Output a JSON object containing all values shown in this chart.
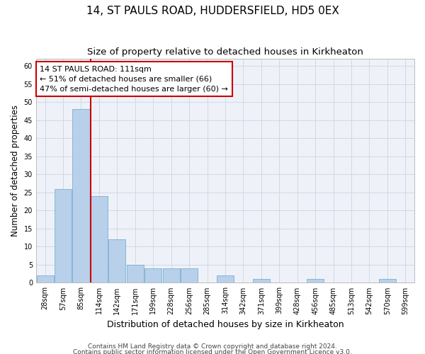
{
  "title1": "14, ST PAULS ROAD, HUDDERSFIELD, HD5 0EX",
  "title2": "Size of property relative to detached houses in Kirkheaton",
  "xlabel": "Distribution of detached houses by size in Kirkheaton",
  "ylabel": "Number of detached properties",
  "categories": [
    "28sqm",
    "57sqm",
    "85sqm",
    "114sqm",
    "142sqm",
    "171sqm",
    "199sqm",
    "228sqm",
    "256sqm",
    "285sqm",
    "314sqm",
    "342sqm",
    "371sqm",
    "399sqm",
    "428sqm",
    "456sqm",
    "485sqm",
    "513sqm",
    "542sqm",
    "570sqm",
    "599sqm"
  ],
  "values": [
    2,
    26,
    48,
    24,
    12,
    5,
    4,
    4,
    4,
    0,
    2,
    0,
    1,
    0,
    0,
    1,
    0,
    0,
    0,
    1,
    0
  ],
  "bar_color": "#b8d0ea",
  "bar_edge_color": "#7aafd4",
  "vline_color": "#cc0000",
  "annotation_text": "14 ST PAULS ROAD: 111sqm\n← 51% of detached houses are smaller (66)\n47% of semi-detached houses are larger (60) →",
  "annotation_box_color": "#ffffff",
  "annotation_box_edge": "#cc0000",
  "ylim": [
    0,
    62
  ],
  "yticks": [
    0,
    5,
    10,
    15,
    20,
    25,
    30,
    35,
    40,
    45,
    50,
    55,
    60
  ],
  "ax_facecolor": "#eef2f8",
  "background_color": "#ffffff",
  "grid_color": "#d0d8e8",
  "footer1": "Contains HM Land Registry data © Crown copyright and database right 2024.",
  "footer2": "Contains public sector information licensed under the Open Government Licence v3.0.",
  "title1_fontsize": 11,
  "title2_fontsize": 9.5,
  "xlabel_fontsize": 9,
  "ylabel_fontsize": 8.5,
  "tick_fontsize": 7,
  "annotation_fontsize": 8,
  "footer_fontsize": 6.5
}
